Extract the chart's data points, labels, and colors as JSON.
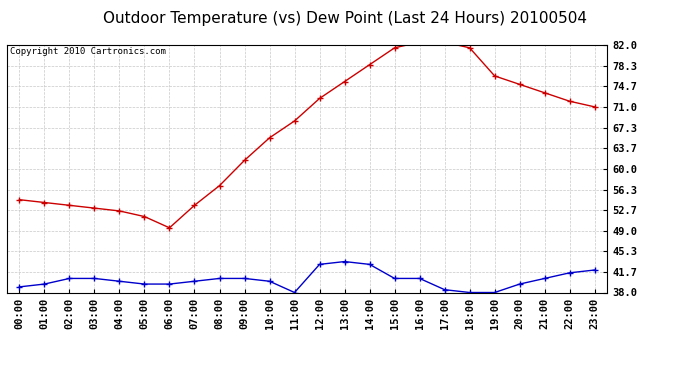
{
  "title": "Outdoor Temperature (vs) Dew Point (Last 24 Hours) 20100504",
  "copyright": "Copyright 2010 Cartronics.com",
  "hours": [
    "00:00",
    "01:00",
    "02:00",
    "03:00",
    "04:00",
    "05:00",
    "06:00",
    "07:00",
    "08:00",
    "09:00",
    "10:00",
    "11:00",
    "12:00",
    "13:00",
    "14:00",
    "15:00",
    "16:00",
    "17:00",
    "18:00",
    "19:00",
    "20:00",
    "21:00",
    "22:00",
    "23:00"
  ],
  "temp": [
    54.5,
    54.0,
    53.5,
    53.0,
    52.5,
    51.5,
    49.5,
    53.5,
    57.0,
    61.5,
    65.5,
    68.5,
    72.5,
    75.5,
    78.5,
    81.5,
    82.5,
    82.5,
    81.5,
    76.5,
    75.0,
    73.5,
    72.0,
    71.0
  ],
  "dew": [
    39.0,
    39.5,
    40.5,
    40.5,
    40.0,
    39.5,
    39.5,
    40.0,
    40.5,
    40.5,
    40.0,
    38.0,
    43.0,
    43.5,
    43.0,
    40.5,
    40.5,
    38.5,
    38.0,
    38.0,
    39.5,
    40.5,
    41.5,
    42.0
  ],
  "temp_color": "#cc0000",
  "dew_color": "#0000cc",
  "background_color": "#ffffff",
  "grid_color": "#c8c8c8",
  "yticks": [
    38.0,
    41.7,
    45.3,
    49.0,
    52.7,
    56.3,
    60.0,
    63.7,
    67.3,
    71.0,
    74.7,
    78.3,
    82.0
  ],
  "ymin": 38.0,
  "ymax": 82.0,
  "title_fontsize": 11,
  "copyright_fontsize": 6.5,
  "tick_fontsize": 7.5
}
